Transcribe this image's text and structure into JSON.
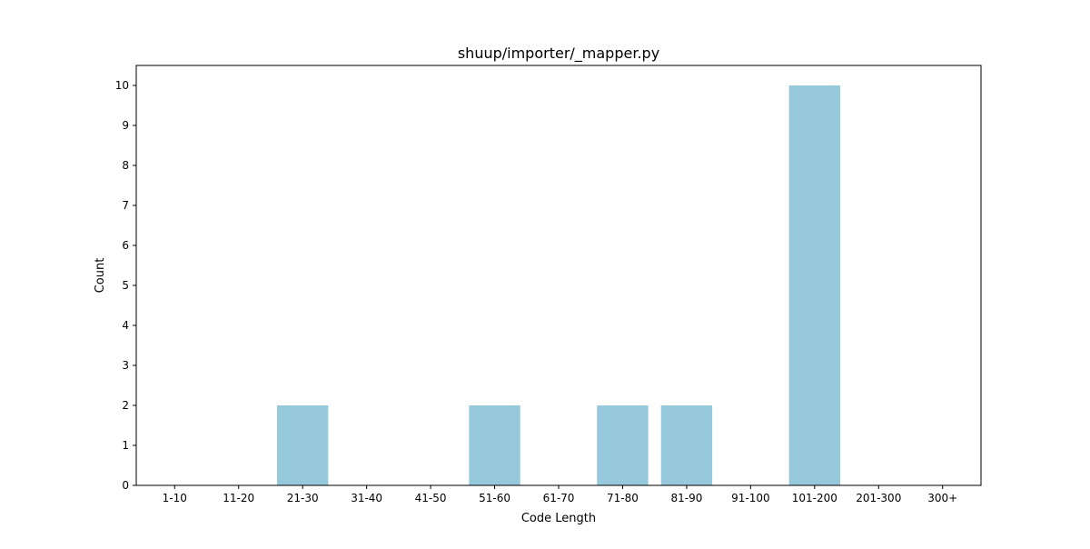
{
  "chart_data": {
    "type": "bar",
    "title": "shuup/importer/_mapper.py",
    "xlabel": "Code Length",
    "ylabel": "Count",
    "categories": [
      "1-10",
      "11-20",
      "21-30",
      "31-40",
      "41-50",
      "51-60",
      "61-70",
      "71-80",
      "81-90",
      "91-100",
      "101-200",
      "201-300",
      "300+"
    ],
    "values": [
      0,
      0,
      2,
      0,
      0,
      2,
      0,
      2,
      2,
      0,
      10,
      0,
      0
    ],
    "ylim": [
      0,
      10.5
    ],
    "yticks": [
      0,
      1,
      2,
      3,
      4,
      5,
      6,
      7,
      8,
      9,
      10
    ],
    "grid": false,
    "legend": "none",
    "colors": {
      "bar": "#96c9dc",
      "axis": "#000000",
      "background": "#ffffff"
    }
  }
}
